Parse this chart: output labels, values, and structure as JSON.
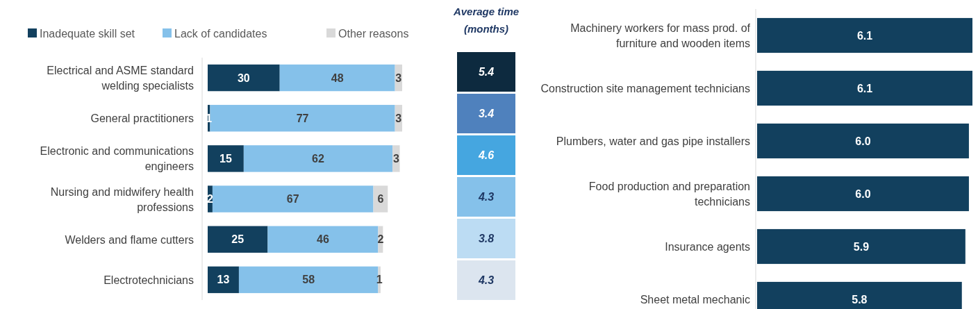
{
  "chart_data": [
    {
      "type": "bar",
      "orientation": "horizontal",
      "stacked": true,
      "legend": "top",
      "data_labels": true,
      "tick_labels": "y",
      "categories": [
        "Electrical and ASME standard welding specialists",
        "General practitioners",
        "Electronic and communications engineers",
        "Nursing and midwifery health professions",
        "Welders and flame cutters",
        "Electrotechnicians"
      ],
      "series": [
        {
          "name": "Inadequate skill set",
          "color": "#12405e",
          "values": [
            30,
            1,
            15,
            2,
            25,
            13
          ]
        },
        {
          "name": "Lack of candidates",
          "color": "#85c1ea",
          "values": [
            48,
            77,
            62,
            67,
            46,
            58
          ]
        },
        {
          "name": "Other reasons",
          "color": "#d9d9d9",
          "values": [
            3,
            3,
            3,
            6,
            2,
            1
          ]
        }
      ]
    },
    {
      "type": "heatmap",
      "title": "Average time (months)",
      "data_labels": true,
      "categories": [
        null
      ],
      "y_categories": [
        null,
        null,
        null,
        null,
        null,
        null
      ],
      "cells": [
        [
          5.4
        ],
        [
          3.4
        ],
        [
          4.6
        ],
        [
          4.3
        ],
        [
          3.8
        ],
        [
          4.3
        ]
      ],
      "colors": [
        "#0d2a3f",
        "#4f81bd",
        "#45a6e0",
        "#85c1ea",
        "#bcdcf3",
        "#dce5ef"
      ]
    },
    {
      "type": "bar",
      "orientation": "horizontal",
      "tick_labels": "y",
      "value_labels": [
        "6.1",
        "6.1",
        "6.0",
        "6.0",
        "5.9",
        "5.8"
      ],
      "categories": [
        "Machinery workers for mass prod. of furniture and wooden items",
        "Construction site management technicians",
        "Plumbers, water and gas pipe installers",
        "Food production and preparation technicians",
        "Insurance agents",
        "Sheet metal mechanic"
      ],
      "values": [
        6.1,
        6.1,
        6.0,
        6.0,
        5.9,
        5.8
      ],
      "color": "#12405e"
    }
  ]
}
